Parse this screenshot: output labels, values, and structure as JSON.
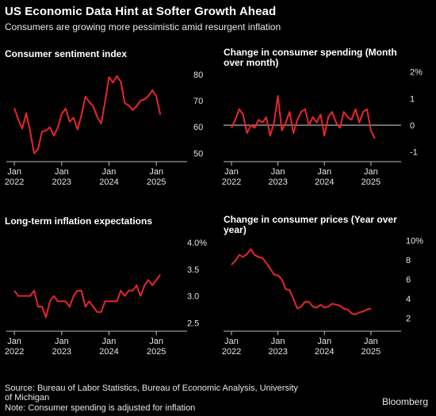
{
  "header": {
    "title": "US Economic Data Hint at Softer Growth Ahead",
    "subtitle": "Consumers are growing more pessimistic amid resurgent inflation"
  },
  "footer": {
    "source": "Source: Bureau of Labor Statistics, Bureau of Economic Analysis, University of Michigan",
    "source_line1": "Source: Bureau of Labor Statistics, Bureau of Economic Analysis, University",
    "source_line2": "of Michigan",
    "note": "Note: Consumer spending is adjusted for inflation",
    "brand": "Bloomberg"
  },
  "colors": {
    "line": "#e8262c",
    "background": "#000000",
    "text": "#e6e6e6"
  },
  "chart_data": [
    {
      "type": "line",
      "title": "Consumer sentiment index",
      "x_ticks": [
        {
          "value": 2022.0,
          "label": "Jan",
          "year": "2022"
        },
        {
          "value": 2023.0,
          "label": "Jan",
          "year": "2023"
        },
        {
          "value": 2024.0,
          "label": "Jan",
          "year": "2024"
        },
        {
          "value": 2025.0,
          "label": "Jan",
          "year": "2025"
        }
      ],
      "xlim": [
        2021.83,
        2025.65
      ],
      "y_ticks": [
        50,
        60,
        70,
        80
      ],
      "y_tick_labels": [
        "50",
        "60",
        "70",
        "80"
      ],
      "ylim": [
        48,
        83
      ],
      "baseline": null,
      "series": [
        {
          "x": [
            2022.0,
            2022.083,
            2022.167,
            2022.25,
            2022.333,
            2022.417,
            2022.5,
            2022.583,
            2022.667,
            2022.75,
            2022.833,
            2022.917,
            2023.0,
            2023.083,
            2023.167,
            2023.25,
            2023.333,
            2023.417,
            2023.5,
            2023.583,
            2023.667,
            2023.75,
            2023.833,
            2023.917,
            2024.0,
            2024.083,
            2024.167,
            2024.25,
            2024.333,
            2024.417,
            2024.5,
            2024.583,
            2024.667,
            2024.75,
            2024.833,
            2024.917,
            2025.0,
            2025.083,
            2025.167
          ],
          "values": [
            67.2,
            62.8,
            59.4,
            65.2,
            58.4,
            50.0,
            51.5,
            58.2,
            58.6,
            59.9,
            56.7,
            59.7,
            64.9,
            67.0,
            62.0,
            63.5,
            59.0,
            64.4,
            71.6,
            69.5,
            67.9,
            63.8,
            61.3,
            69.7,
            79.0,
            76.9,
            79.4,
            77.2,
            69.1,
            68.2,
            66.4,
            67.9,
            70.1,
            70.5,
            71.8,
            74.0,
            71.7,
            64.7,
            null
          ]
        }
      ]
    },
    {
      "type": "line",
      "title": "Change in consumer spending (Month over month)",
      "x_ticks": [
        {
          "value": 2022.0,
          "label": "Jan",
          "year": "2022"
        },
        {
          "value": 2023.0,
          "label": "Jan",
          "year": "2023"
        },
        {
          "value": 2024.0,
          "label": "Jan",
          "year": "2024"
        },
        {
          "value": 2025.0,
          "label": "Jan",
          "year": "2025"
        }
      ],
      "xlim": [
        2021.83,
        2025.65
      ],
      "y_ticks": [
        -1,
        0,
        1,
        2
      ],
      "y_tick_labels": [
        "-1",
        "0",
        "1",
        "2%"
      ],
      "ylim": [
        -1.25,
        2.2
      ],
      "baseline": 0,
      "series": [
        {
          "x": [
            2022.0,
            2022.083,
            2022.167,
            2022.25,
            2022.333,
            2022.417,
            2022.5,
            2022.583,
            2022.667,
            2022.75,
            2022.833,
            2022.917,
            2023.0,
            2023.083,
            2023.167,
            2023.25,
            2023.333,
            2023.417,
            2023.5,
            2023.583,
            2023.667,
            2023.75,
            2023.833,
            2023.917,
            2024.0,
            2024.083,
            2024.167,
            2024.25,
            2024.333,
            2024.417,
            2024.5,
            2024.583,
            2024.667,
            2024.75,
            2024.833,
            2024.917,
            2025.0,
            2025.083
          ],
          "values": [
            -0.1,
            0.2,
            0.6,
            0.4,
            -0.3,
            0.0,
            -0.1,
            0.2,
            0.1,
            0.3,
            -0.4,
            0.1,
            1.1,
            -0.2,
            0.1,
            0.5,
            -0.3,
            0.2,
            0.5,
            0.6,
            0.0,
            0.3,
            0.1,
            0.4,
            -0.4,
            0.3,
            0.5,
            0.1,
            -0.1,
            0.5,
            0.3,
            0.2,
            0.6,
            0.1,
            0.5,
            0.6,
            -0.2,
            -0.5
          ]
        }
      ]
    },
    {
      "type": "line",
      "title": "Long-term inflation expectations",
      "x_ticks": [
        {
          "value": 2022.0,
          "label": "Jan",
          "year": "2022"
        },
        {
          "value": 2023.0,
          "label": "Jan",
          "year": "2023"
        },
        {
          "value": 2024.0,
          "label": "Jan",
          "year": "2024"
        },
        {
          "value": 2025.0,
          "label": "Jan",
          "year": "2025"
        }
      ],
      "xlim": [
        2021.83,
        2025.65
      ],
      "y_ticks": [
        2.5,
        3.0,
        3.5,
        4.0
      ],
      "y_tick_labels": [
        "2.5",
        "3.0",
        "3.5",
        "4.0%"
      ],
      "ylim": [
        2.4,
        4.15
      ],
      "baseline": null,
      "series": [
        {
          "x": [
            2022.0,
            2022.083,
            2022.167,
            2022.25,
            2022.333,
            2022.417,
            2022.5,
            2022.583,
            2022.667,
            2022.75,
            2022.833,
            2022.917,
            2023.0,
            2023.083,
            2023.167,
            2023.25,
            2023.333,
            2023.417,
            2023.5,
            2023.583,
            2023.667,
            2023.75,
            2023.833,
            2023.917,
            2024.0,
            2024.083,
            2024.167,
            2024.25,
            2024.333,
            2024.417,
            2024.5,
            2024.583,
            2024.667,
            2024.75,
            2024.833,
            2024.917,
            2025.0,
            2025.083
          ],
          "values": [
            3.1,
            3.0,
            3.0,
            3.0,
            3.0,
            3.1,
            2.8,
            2.8,
            2.6,
            2.9,
            3.0,
            2.9,
            2.9,
            2.9,
            2.8,
            3.0,
            3.1,
            3.1,
            2.8,
            2.9,
            2.8,
            2.7,
            2.7,
            2.9,
            2.9,
            2.9,
            2.9,
            3.1,
            3.0,
            3.1,
            3.1,
            3.2,
            3.0,
            3.2,
            3.3,
            3.2,
            3.3,
            3.4
          ]
        }
      ]
    },
    {
      "type": "line",
      "title": "Change in consumer prices (Year over year)",
      "x_ticks": [
        {
          "value": 2022.0,
          "label": "Jan",
          "year": "2022"
        },
        {
          "value": 2023.0,
          "label": "Jan",
          "year": "2023"
        },
        {
          "value": 2024.0,
          "label": "Jan",
          "year": "2024"
        },
        {
          "value": 2025.0,
          "label": "Jan",
          "year": "2025"
        }
      ],
      "xlim": [
        2021.83,
        2025.65
      ],
      "y_ticks": [
        2,
        4,
        6,
        8,
        10
      ],
      "y_tick_labels": [
        "2",
        "4",
        "6",
        "8",
        "10%"
      ],
      "ylim": [
        1.0,
        10.6
      ],
      "baseline": null,
      "series": [
        {
          "x": [
            2022.0,
            2022.083,
            2022.167,
            2022.25,
            2022.333,
            2022.417,
            2022.5,
            2022.583,
            2022.667,
            2022.75,
            2022.833,
            2022.917,
            2023.0,
            2023.083,
            2023.167,
            2023.25,
            2023.333,
            2023.417,
            2023.5,
            2023.583,
            2023.667,
            2023.75,
            2023.833,
            2023.917,
            2024.0,
            2024.083,
            2024.167,
            2024.25,
            2024.333,
            2024.417,
            2024.5,
            2024.583,
            2024.667,
            2024.75,
            2024.833,
            2024.917,
            2025.0
          ],
          "values": [
            7.5,
            7.9,
            8.5,
            8.3,
            8.6,
            9.1,
            8.5,
            8.3,
            8.2,
            7.7,
            7.1,
            6.5,
            6.4,
            6.0,
            5.0,
            4.9,
            4.0,
            3.0,
            3.2,
            3.7,
            3.7,
            3.2,
            3.1,
            3.4,
            3.1,
            3.2,
            3.5,
            3.4,
            3.3,
            3.0,
            2.9,
            2.5,
            2.4,
            2.6,
            2.7,
            2.9,
            3.0
          ]
        }
      ]
    }
  ]
}
